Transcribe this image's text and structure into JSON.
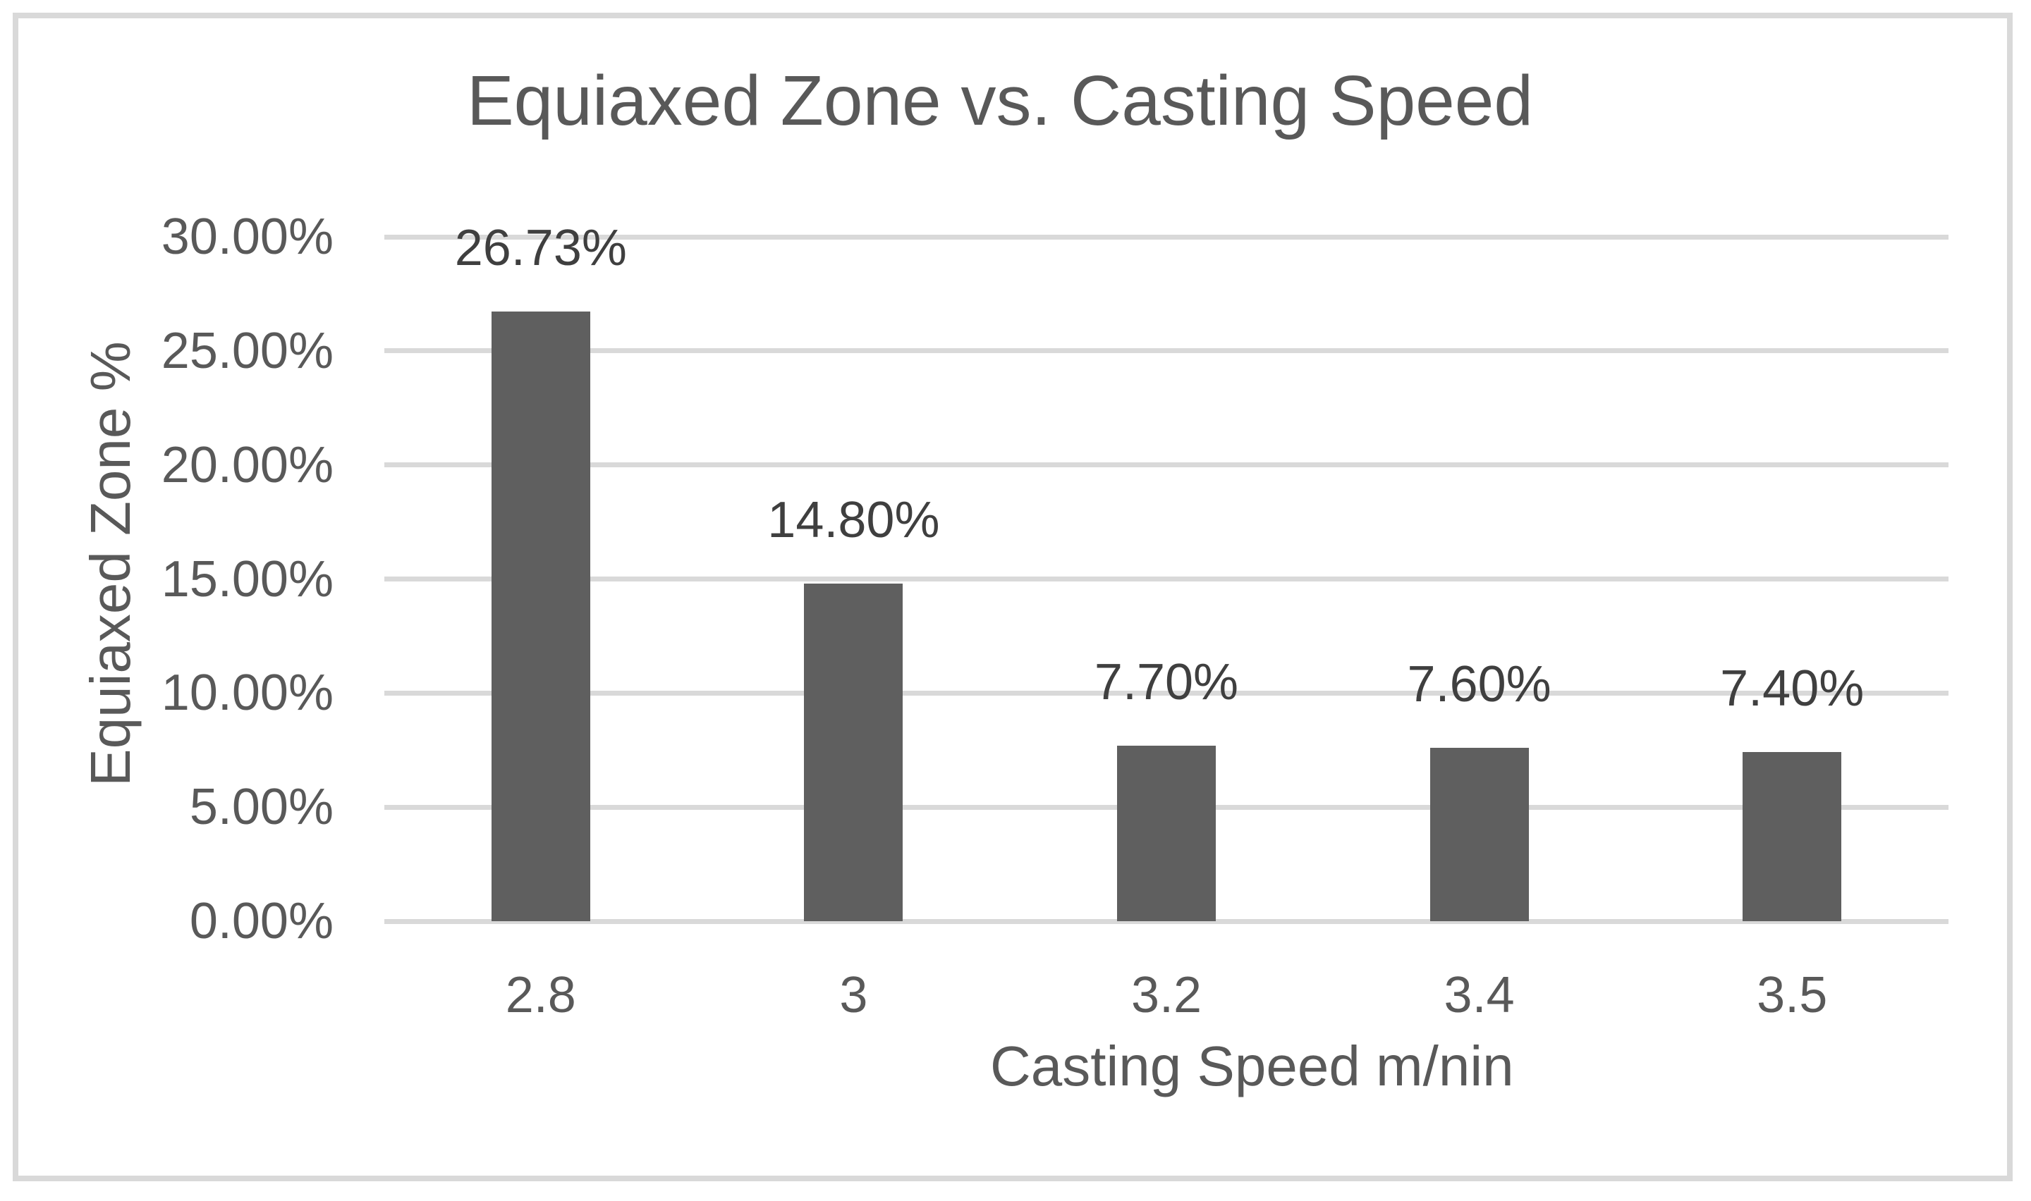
{
  "chart_data": {
    "type": "bar",
    "title": "Equiaxed Zone vs. Casting Speed",
    "xlabel": "Casting Speed m/nin",
    "ylabel": "Equiaxed Zone %",
    "categories": [
      "2.8",
      "3",
      "3.2",
      "3.4",
      "3.5"
    ],
    "values": [
      26.73,
      14.8,
      7.7,
      7.6,
      7.4
    ],
    "data_labels": [
      "26.73%",
      "14.80%",
      "7.70%",
      "7.60%",
      "7.40%"
    ],
    "ylim": [
      0,
      30
    ],
    "ytick_values": [
      0,
      5,
      10,
      15,
      20,
      25,
      30
    ],
    "ytick_labels": [
      "0.00%",
      "5.00%",
      "10.00%",
      "15.00%",
      "20.00%",
      "25.00%",
      "30.00%"
    ],
    "grid": true,
    "legend": false,
    "series_count": 1,
    "colors": {
      "bar": "#5f5f5f",
      "gridline": "#d9d9d9",
      "axis_line": "#d9d9d9",
      "title_text": "#595959",
      "axis_text": "#595959",
      "data_label_text": "#3f3f3f",
      "frame_border": "#d9d9d9",
      "background": "#ffffff"
    }
  }
}
